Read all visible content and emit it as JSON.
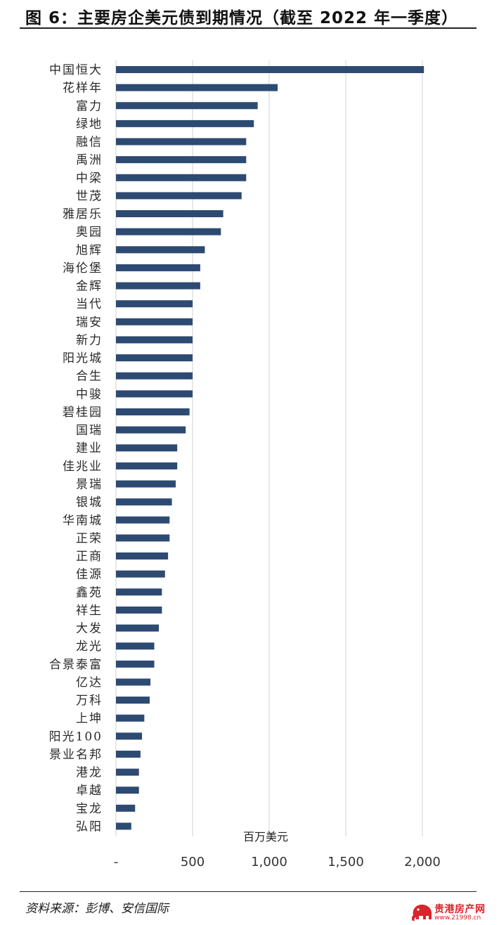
{
  "title": "图 6：主要房企美元债到期情况（截至 2022 年一季度）",
  "source": "资料来源：彭博、安信国际",
  "watermark": {
    "name": "贵港房产网",
    "url": "www.21998.cn",
    "color": "#d9252b"
  },
  "chart_data": {
    "type": "bar",
    "orientation": "horizontal",
    "bar_color": "#2d4a72",
    "grid": true,
    "unit_label": "百万美元",
    "xlim": [
      0,
      2000
    ],
    "x_ticks": [
      0,
      500,
      1000,
      1500,
      2000
    ],
    "x_tick_labels": [
      "-",
      "500",
      "1,000",
      "1,500",
      "2,000"
    ],
    "categories": [
      "中国恒大",
      "花样年",
      "富力",
      "绿地",
      "融信",
      "禹洲",
      "中梁",
      "世茂",
      "雅居乐",
      "奥园",
      "旭辉",
      "海伦堡",
      "金辉",
      "当代",
      "瑞安",
      "新力",
      "阳光城",
      "合生",
      "中骏",
      "碧桂园",
      "国瑞",
      "建业",
      "佳兆业",
      "景瑞",
      "银城",
      "华南城",
      "正荣",
      "正商",
      "佳源",
      "鑫苑",
      "祥生",
      "大发",
      "龙光",
      "合景泰富",
      "亿达",
      "万科",
      "上坤",
      "阳光100",
      "景业名邦",
      "港龙",
      "卓越",
      "宝龙",
      "弘阳"
    ],
    "values": [
      2010,
      1055,
      925,
      900,
      850,
      850,
      850,
      820,
      700,
      685,
      580,
      550,
      550,
      500,
      500,
      500,
      500,
      500,
      500,
      480,
      455,
      400,
      400,
      390,
      365,
      350,
      350,
      340,
      320,
      300,
      300,
      280,
      250,
      250,
      225,
      220,
      185,
      170,
      160,
      150,
      150,
      125,
      100
    ]
  }
}
